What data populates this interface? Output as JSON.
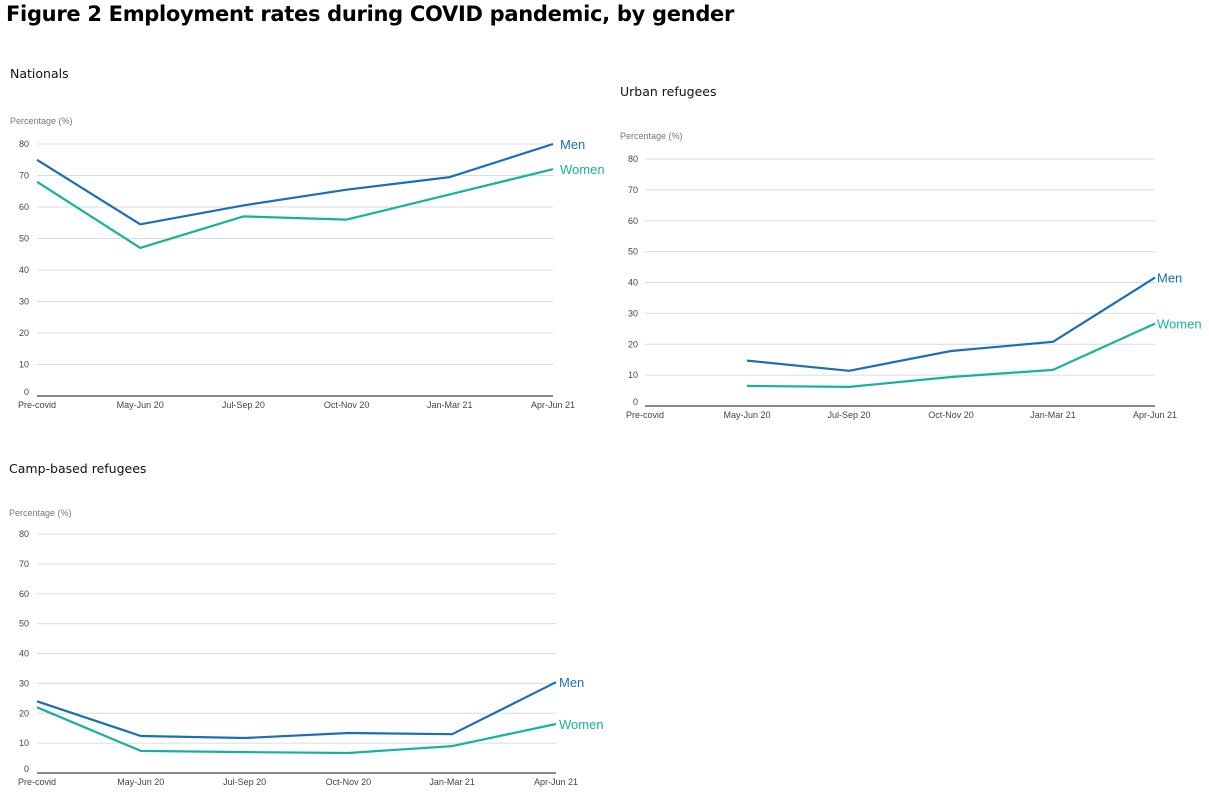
{
  "figure_title": "Figure 2 Employment rates during COVID pandemic, by gender",
  "colors": {
    "men": "#1a6fb5",
    "women": "#16b39a"
  },
  "chart_data": [
    {
      "type": "line",
      "title": "Nationals",
      "ylabel": "Percentage (%)",
      "xlabel": "",
      "categories": [
        "Pre-covid",
        "May-Jun 20",
        "Jul-Sep 20",
        "Oct-Nov 20",
        "Jan-Mar 21",
        "Apr-Jun 21"
      ],
      "yticks": [
        0,
        10,
        20,
        30,
        40,
        50,
        60,
        70,
        80
      ],
      "ylim": [
        0,
        80
      ],
      "grid": true,
      "legend": "end-of-line labels (right)",
      "series": [
        {
          "name": "Men",
          "values": [
            75,
            54.5,
            60.5,
            65.5,
            69.5,
            80
          ]
        },
        {
          "name": "Women",
          "values": [
            68,
            47,
            57,
            56,
            64,
            72
          ]
        }
      ]
    },
    {
      "type": "line",
      "title": "Urban refugees",
      "ylabel": "Percentage (%)",
      "xlabel": "",
      "categories": [
        "Pre-covid",
        "May-Jun 20",
        "Jul-Sep 20",
        "Oct-Nov 20",
        "Jan-Mar 21",
        "Apr-Jun 21"
      ],
      "yticks": [
        0,
        10,
        20,
        30,
        40,
        50,
        60,
        70,
        80
      ],
      "ylim": [
        0,
        80
      ],
      "grid": true,
      "legend": "end-of-line labels (right)",
      "series": [
        {
          "name": "Men",
          "values": [
            null,
            14.7,
            11.4,
            17.8,
            20.8,
            41.6
          ]
        },
        {
          "name": "Women",
          "values": [
            null,
            6.5,
            6.2,
            9.4,
            11.7,
            26.7
          ]
        }
      ]
    },
    {
      "type": "line",
      "title": "Camp-based refugees",
      "ylabel": "Percentage (%)",
      "xlabel": "",
      "categories": [
        "Pre-covid",
        "May-Jun 20",
        "Jul-Sep 20",
        "Oct-Nov 20",
        "Jan-Mar 21",
        "Apr-Jun 21"
      ],
      "yticks": [
        0,
        10,
        20,
        30,
        40,
        50,
        60,
        70,
        80
      ],
      "ylim": [
        0,
        80
      ],
      "grid": true,
      "legend": "end-of-line labels (right)",
      "series": [
        {
          "name": "Men",
          "values": [
            24,
            12.4,
            11.7,
            13.4,
            13,
            30.4
          ]
        },
        {
          "name": "Women",
          "values": [
            22,
            7.4,
            7,
            6.7,
            9,
            16.4
          ]
        }
      ]
    }
  ]
}
